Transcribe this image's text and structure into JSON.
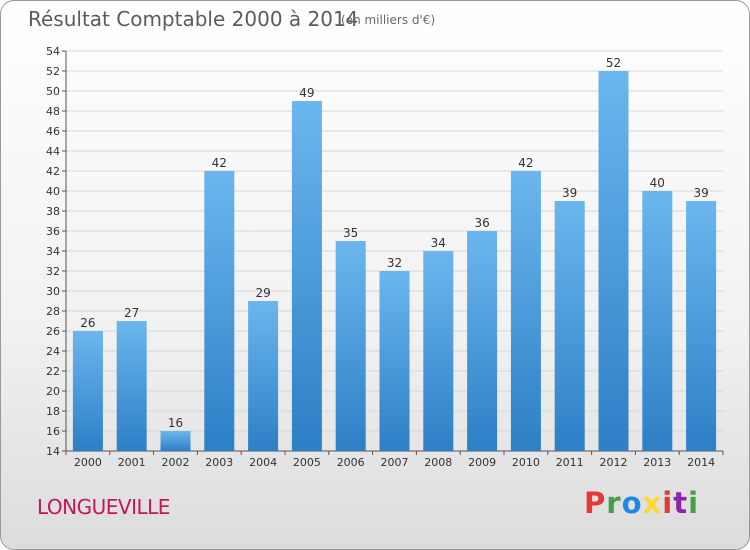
{
  "header": {
    "title": "Résultat Comptable 2000 à 2014",
    "subtitle": "(en milliers d'€)"
  },
  "footer": {
    "commune": "LONGUEVILLE",
    "logo_letters": [
      "P",
      "r",
      "o",
      "x",
      "i",
      "t",
      "i"
    ],
    "logo_colors": [
      "#e53935",
      "#43a047",
      "#1e88e5",
      "#fdd835",
      "#e53935",
      "#8e24aa",
      "#43a047"
    ]
  },
  "chart_data": {
    "type": "bar",
    "title": "Résultat Comptable 2000 à 2014",
    "subtitle": "(en milliers d'€)",
    "categories": [
      "2000",
      "2001",
      "2002",
      "2003",
      "2004",
      "2005",
      "2006",
      "2007",
      "2008",
      "2009",
      "2010",
      "2011",
      "2012",
      "2013",
      "2014"
    ],
    "values": [
      26,
      27,
      16,
      42,
      29,
      49,
      35,
      32,
      34,
      36,
      42,
      39,
      52,
      40,
      39
    ],
    "ylim": [
      14,
      54
    ],
    "ytick_step": 2,
    "grid": true,
    "bar_color_top": "#6bb6ee",
    "bar_color_bottom": "#2d7fc6"
  }
}
